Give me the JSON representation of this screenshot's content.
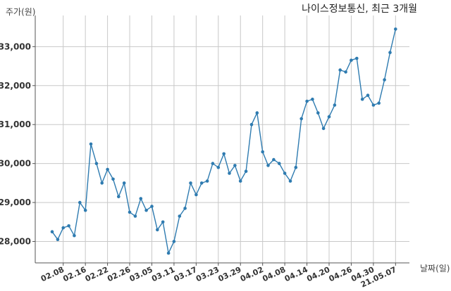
{
  "chart_data": {
    "type": "line",
    "title": "나이스정보통신, 최근 3개월",
    "ylabel": "주가(원)",
    "xlabel": "날짜(일)",
    "ylim": [
      27450,
      33800
    ],
    "yticks": [
      28000,
      29000,
      30000,
      31000,
      32000,
      33000
    ],
    "ytick_labels": [
      "28,000",
      "29,000",
      "30,000",
      "31,000",
      "32,000",
      "33,000"
    ],
    "x_tick_indices": [
      2,
      6,
      10,
      14,
      18,
      22,
      26,
      30,
      34,
      38,
      42,
      46,
      50,
      54,
      58,
      62
    ],
    "x_tick_labels": [
      "02.08",
      "02.16",
      "02.22",
      "02.26",
      "03.05",
      "03.11",
      "03.17",
      "03.23",
      "03.29",
      "04.02",
      "04.08",
      "04.14",
      "04.20",
      "04.26",
      "04.30",
      "21.05.07"
    ],
    "grid": true,
    "line_color": "#2e7bb0",
    "series": [
      {
        "values": [
          28250,
          28050,
          28350,
          28400,
          28150,
          29000,
          28800,
          30500,
          30000,
          29500,
          29850,
          29600,
          29150,
          29500,
          28750,
          28650,
          29100,
          28800,
          28900,
          28300,
          28500,
          27700,
          28000,
          28650,
          28850,
          29500,
          29200,
          29500,
          29550,
          30000,
          29900,
          30250,
          29750,
          29950,
          29550,
          29800,
          31000,
          31300,
          30300,
          29950,
          30100,
          30000,
          29750,
          29550,
          29900,
          31150,
          31600,
          31650,
          31300,
          30900,
          31200,
          31500,
          32400,
          32350,
          32650,
          32700,
          31650,
          31750,
          31500,
          31550,
          32150,
          32850,
          33450
        ]
      }
    ]
  }
}
